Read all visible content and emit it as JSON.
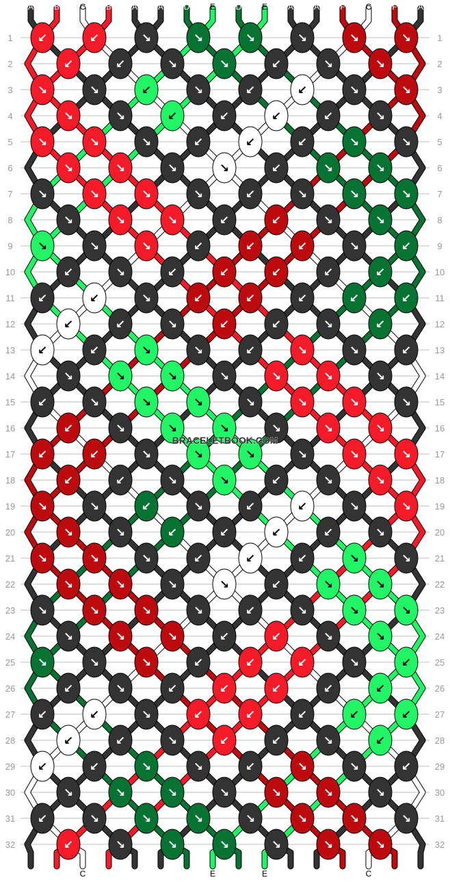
{
  "watermark": "BRACELETBOOK.COM",
  "colors": {
    "A": "#333333",
    "B": "#f51a28",
    "C": "#ffffff",
    "D": "#077333",
    "E": "#22f565",
    "F": "#bd0a0e"
  },
  "strings": [
    "A",
    "B",
    "C",
    "B",
    "A",
    "A",
    "D",
    "E",
    "D",
    "E",
    "A",
    "A",
    "F",
    "C",
    "F",
    "A"
  ],
  "rows": [
    {
      "number": "1",
      "knots": [
        "B↙",
        "B↙",
        "A↘",
        "D↘",
        "D↘",
        "A↘",
        "F↘",
        "F↘"
      ]
    },
    {
      "number": "2",
      "knots": [
        "B↙",
        "A↙",
        "A↘",
        "D↘",
        "A↙",
        "A↘",
        "F↘"
      ]
    },
    {
      "number": "3",
      "knots": [
        "B↘",
        "A↘",
        "E↙",
        "A↘",
        "A↙",
        "C↙",
        "A↘",
        "F↘"
      ]
    },
    {
      "number": "4",
      "knots": [
        "B↘",
        "A↘",
        "E↙",
        "A↙",
        "C↙",
        "A↙",
        "A↘"
      ]
    },
    {
      "number": "5",
      "knots": [
        "B↘",
        "B↘",
        "A↘",
        "A↙",
        "C↙",
        "A↙",
        "D↘",
        "A↘"
      ]
    },
    {
      "number": "6",
      "knots": [
        "B↘",
        "B↘",
        "A↘",
        "C↘",
        "A↙",
        "D↘",
        "D↘"
      ]
    },
    {
      "number": "7",
      "knots": [
        "A↘",
        "B↘",
        "B↘",
        "A↘",
        "A↙",
        "A↘",
        "D↘",
        "D↘"
      ]
    },
    {
      "number": "8",
      "knots": [
        "A↘",
        "B↘",
        "B↘",
        "A↙",
        "F↙",
        "A↘",
        "D↘"
      ]
    },
    {
      "number": "9",
      "knots": [
        "E↘",
        "A↘",
        "B↘",
        "A↙",
        "F↙",
        "F↙",
        "A↘",
        "D↙"
      ]
    },
    {
      "number": "10",
      "knots": [
        "A↙",
        "A↘",
        "A↙",
        "F↙",
        "F↙",
        "A↙",
        "D↙"
      ]
    },
    {
      "number": "11",
      "knots": [
        "A↙",
        "C↙",
        "A↘",
        "F↙",
        "F↙",
        "A↙",
        "D↙",
        "D↙"
      ]
    },
    {
      "number": "12",
      "knots": [
        "C↙",
        "A↙",
        "A↘",
        "F↙",
        "A↙",
        "A↘",
        "D↙"
      ]
    },
    {
      "number": "13",
      "knots": [
        "C↙",
        "A↙",
        "E↘",
        "A↘",
        "A↙",
        "B↘",
        "A↘",
        "A↙"
      ]
    },
    {
      "number": "14",
      "knots": [
        "A↘",
        "E↘",
        "E↘",
        "A↘",
        "B↘",
        "B↘",
        "A↘"
      ]
    },
    {
      "number": "15",
      "knots": [
        "A↙",
        "A↘",
        "E↘",
        "E↘",
        "A↘",
        "B↘",
        "B↘",
        "A↘"
      ]
    },
    {
      "number": "16",
      "knots": [
        "F↙",
        "A↘",
        "E↘",
        "E↘",
        "A↘",
        "B↘",
        "B↘"
      ]
    },
    {
      "number": "17",
      "knots": [
        "F↙",
        "F↙",
        "A↘",
        "E↘",
        "E↘",
        "A↘",
        "B↘",
        "B↘"
      ]
    },
    {
      "number": "18",
      "knots": [
        "F↙",
        "A↙",
        "A↘",
        "E↘",
        "A↙",
        "A↘",
        "B↘"
      ]
    },
    {
      "number": "19",
      "knots": [
        "F↘",
        "A↘",
        "D↙",
        "A↘",
        "A↙",
        "C↙",
        "A↘",
        "B↘"
      ]
    },
    {
      "number": "20",
      "knots": [
        "F↘",
        "A↘",
        "D↙",
        "A↙",
        "C↙",
        "A↙",
        "A↘"
      ]
    },
    {
      "number": "21",
      "knots": [
        "F↘",
        "F↘",
        "A↘",
        "A↙",
        "C↙",
        "A↙",
        "E↘",
        "A↘"
      ]
    },
    {
      "number": "22",
      "knots": [
        "F↘",
        "F↘",
        "A↘",
        "C↘",
        "A↙",
        "E↘",
        "E↘"
      ]
    },
    {
      "number": "23",
      "knots": [
        "A↘",
        "F↘",
        "F↘",
        "A↘",
        "A↙",
        "A↘",
        "E↘",
        "E↘"
      ]
    },
    {
      "number": "24",
      "knots": [
        "A↘",
        "F↘",
        "F↘",
        "A↙",
        "B↙",
        "A↘",
        "E↘"
      ]
    },
    {
      "number": "25",
      "knots": [
        "D↘",
        "A↘",
        "F↘",
        "A↙",
        "B↙",
        "B↙",
        "A↘",
        "E↙"
      ]
    },
    {
      "number": "26",
      "knots": [
        "A↙",
        "A↘",
        "A↙",
        "B↙",
        "B↙",
        "A↙",
        "E↙"
      ]
    },
    {
      "number": "27",
      "knots": [
        "A↙",
        "C↙",
        "A↘",
        "B↙",
        "B↙",
        "A↙",
        "E↙",
        "E↙"
      ]
    },
    {
      "number": "28",
      "knots": [
        "C↙",
        "A↙",
        "A↘",
        "B↙",
        "A↙",
        "A↘",
        "E↙"
      ]
    },
    {
      "number": "29",
      "knots": [
        "C↙",
        "A↙",
        "D↘",
        "A↘",
        "A↙",
        "F↘",
        "A↘",
        "A↙"
      ]
    },
    {
      "number": "30",
      "knots": [
        "A↘",
        "D↘",
        "D↘",
        "A↘",
        "F↘",
        "F↘",
        "A↘"
      ]
    },
    {
      "number": "31",
      "knots": [
        "A↙",
        "A↘",
        "D↘",
        "D↘",
        "A↘",
        "F↘",
        "F↘",
        "A↘"
      ]
    },
    {
      "number": "32",
      "knots": [
        "B↙",
        "A↘",
        "D↘",
        "D↘",
        "A↘",
        "F↘",
        "F↘"
      ]
    }
  ]
}
